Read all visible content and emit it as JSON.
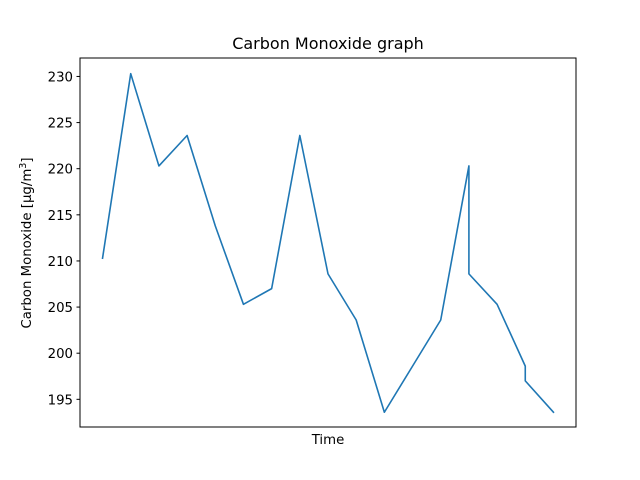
{
  "chart_data": {
    "type": "line",
    "title": "Carbon Monoxide graph",
    "xlabel": "Time",
    "ylabel": "Carbon Monoxide [μg/m³]",
    "ylabel_parts": {
      "main": "Carbon Monoxide [μg/m",
      "superscript": "3",
      "end": "]"
    },
    "ylim": [
      192,
      232
    ],
    "xticks_visible": false,
    "grid": false,
    "yticks": [
      195,
      200,
      205,
      210,
      215,
      220,
      225,
      230
    ],
    "ytick_labels": [
      "195",
      "200",
      "205",
      "210",
      "215",
      "220",
      "225",
      "230"
    ],
    "series": [
      {
        "name": "Carbon Monoxide",
        "color": "#1f77b4",
        "x": [
          0,
          1,
          2,
          3,
          4,
          5,
          6,
          7,
          8,
          9,
          10,
          11,
          12,
          13,
          13,
          14,
          15,
          15,
          16
        ],
        "values": [
          210.3,
          230.3,
          220.3,
          223.6,
          213.8,
          205.3,
          207.0,
          223.6,
          208.6,
          203.6,
          193.6,
          198.6,
          203.6,
          220.3,
          208.6,
          205.3,
          198.6,
          197.0,
          193.6
        ]
      }
    ]
  }
}
